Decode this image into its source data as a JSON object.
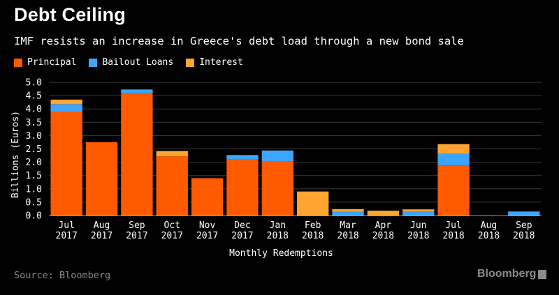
{
  "title": "Debt Ceiling",
  "subtitle": "IMF resists an increase in Greece's debt load through a new bond sale",
  "source": "Source: Bloomberg",
  "brand": "Bloomberg",
  "colors": {
    "principal": "#ff5a00",
    "bailout": "#3da5ff",
    "interest": "#ffa431",
    "grid": "#3a3a3a",
    "background": "#000000"
  },
  "chart_data": {
    "type": "bar",
    "stacked": true,
    "xlabel": "Monthly Redemptions",
    "ylabel": "Billions (Euros)",
    "ylim": [
      0,
      5.0
    ],
    "yticks": [
      "0.0",
      "0.5",
      "1.0",
      "1.5",
      "2.0",
      "2.5",
      "3.0",
      "3.5",
      "4.0",
      "4.5",
      "5.0"
    ],
    "grid": true,
    "legend_position": "top-left",
    "categories": [
      [
        "Jul",
        "2017"
      ],
      [
        "Aug",
        "2017"
      ],
      [
        "Sep",
        "2017"
      ],
      [
        "Oct",
        "2017"
      ],
      [
        "Nov",
        "2017"
      ],
      [
        "Dec",
        "2017"
      ],
      [
        "Jan",
        "2018"
      ],
      [
        "Feb",
        "2018"
      ],
      [
        "Mar",
        "2018"
      ],
      [
        "Apr",
        "2018"
      ],
      [
        "Jun",
        "2018"
      ],
      [
        "Jul",
        "2018"
      ],
      [
        "Aug",
        "2018"
      ],
      [
        "Sep",
        "2018"
      ]
    ],
    "series": [
      {
        "name": "Principal",
        "color": "#ff5a00",
        "values": [
          3.9,
          2.75,
          4.6,
          2.22,
          1.4,
          2.12,
          2.02,
          0,
          0,
          0,
          0,
          1.88,
          0,
          0
        ]
      },
      {
        "name": "Bailout Loans",
        "color": "#3da5ff",
        "values": [
          0.28,
          0,
          0.13,
          0,
          0,
          0.15,
          0.42,
          0,
          0.14,
          0,
          0.15,
          0.45,
          0,
          0.15
        ]
      },
      {
        "name": "Interest",
        "color": "#ffa431",
        "values": [
          0.17,
          0,
          0,
          0.2,
          0,
          0,
          0,
          0.9,
          0.1,
          0.18,
          0.08,
          0.35,
          0,
          0
        ]
      }
    ]
  }
}
